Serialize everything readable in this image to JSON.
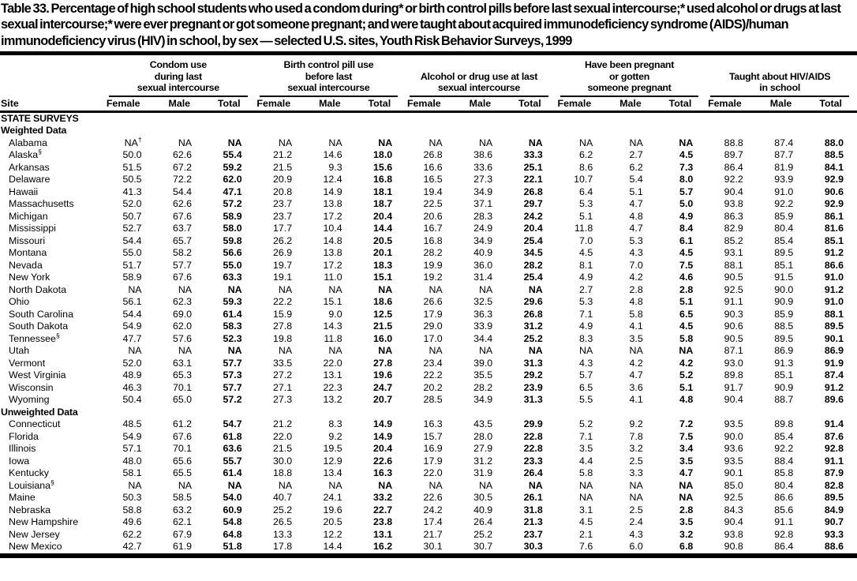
{
  "title": "Table 33. Percentage of high school students who used a condom during* or birth control pills before last sexual intercourse;* used alcohol or drugs at last sexual intercourse;* were ever pregnant or got someone pregnant; and were taught about acquired immunodeficiency syndrome (AIDS)/human immunodeficiency virus (HIV) in school, by sex — selected U.S. sites, Youth Risk Behavior Surveys, 1999",
  "table": {
    "site_header": "Site",
    "column_groups": [
      {
        "label_lines": [
          "Condom use",
          "during last",
          "sexual intercourse"
        ]
      },
      {
        "label_lines": [
          "Birth control pill use",
          "before last",
          "sexual intercourse"
        ]
      },
      {
        "label_lines": [
          "Alcohol or drug use at last",
          "sexual intercourse"
        ]
      },
      {
        "label_lines": [
          "Have been pregnant",
          "or gotten",
          "someone pregnant"
        ]
      },
      {
        "label_lines": [
          "Taught about HIV/AIDS",
          "in school"
        ]
      }
    ],
    "sub_headers": [
      "Female",
      "Male",
      "Total"
    ],
    "sections": [
      {
        "label": "STATE SURVEYS",
        "rows": []
      },
      {
        "label": "Weighted Data",
        "rows": [
          {
            "site": "Alabama",
            "sup": "",
            "values": [
              "NA†",
              "NA",
              "NA",
              "NA",
              "NA",
              "NA",
              "NA",
              "NA",
              "NA",
              "NA",
              "NA",
              "NA",
              "88.8",
              "87.4",
              "88.0"
            ]
          },
          {
            "site": "Alaska",
            "sup": "§",
            "values": [
              "50.0",
              "62.6",
              "55.4",
              "21.2",
              "14.6",
              "18.0",
              "26.8",
              "38.6",
              "33.3",
              "6.2",
              "2.7",
              "4.5",
              "89.7",
              "87.7",
              "88.5"
            ]
          },
          {
            "site": "Arkansas",
            "sup": "",
            "values": [
              "51.5",
              "67.2",
              "59.2",
              "21.5",
              "9.3",
              "15.6",
              "16.6",
              "33.6",
              "25.1",
              "8.6",
              "6.2",
              "7.3",
              "86.4",
              "81.9",
              "84.1"
            ]
          },
          {
            "site": "Delaware",
            "sup": "",
            "values": [
              "50.5",
              "72.2",
              "62.0",
              "20.9",
              "12.4",
              "16.8",
              "16.5",
              "27.3",
              "22.1",
              "10.7",
              "5.4",
              "8.0",
              "92.2",
              "93.9",
              "92.9"
            ]
          },
          {
            "site": "Hawaii",
            "sup": "",
            "values": [
              "41.3",
              "54.4",
              "47.1",
              "20.8",
              "14.9",
              "18.1",
              "19.4",
              "34.9",
              "26.8",
              "6.4",
              "5.1",
              "5.7",
              "90.4",
              "91.0",
              "90.6"
            ]
          },
          {
            "site": "Massachusetts",
            "sup": "",
            "values": [
              "52.0",
              "62.6",
              "57.2",
              "23.7",
              "13.8",
              "18.7",
              "22.5",
              "37.1",
              "29.7",
              "5.3",
              "4.7",
              "5.0",
              "93.8",
              "92.2",
              "92.9"
            ]
          },
          {
            "site": "Michigan",
            "sup": "",
            "values": [
              "50.7",
              "67.6",
              "58.9",
              "23.7",
              "17.2",
              "20.4",
              "20.6",
              "28.3",
              "24.2",
              "5.1",
              "4.8",
              "4.9",
              "86.3",
              "85.9",
              "86.1"
            ]
          },
          {
            "site": "Mississippi",
            "sup": "",
            "values": [
              "52.7",
              "63.7",
              "58.0",
              "17.7",
              "10.4",
              "14.4",
              "16.7",
              "24.9",
              "20.4",
              "11.8",
              "4.7",
              "8.4",
              "82.9",
              "80.4",
              "81.6"
            ]
          },
          {
            "site": "Missouri",
            "sup": "",
            "values": [
              "54.4",
              "65.7",
              "59.8",
              "26.2",
              "14.8",
              "20.5",
              "16.8",
              "34.9",
              "25.4",
              "7.0",
              "5.3",
              "6.1",
              "85.2",
              "85.4",
              "85.1"
            ]
          },
          {
            "site": "Montana",
            "sup": "",
            "values": [
              "55.0",
              "58.2",
              "56.6",
              "26.9",
              "13.8",
              "20.1",
              "28.2",
              "40.9",
              "34.5",
              "4.5",
              "4.3",
              "4.5",
              "93.1",
              "89.5",
              "91.2"
            ]
          },
          {
            "site": "Nevada",
            "sup": "",
            "values": [
              "51.7",
              "57.7",
              "55.0",
              "19.7",
              "17.2",
              "18.3",
              "19.9",
              "36.0",
              "28.2",
              "8.1",
              "7.0",
              "7.5",
              "88.1",
              "85.1",
              "86.6"
            ]
          },
          {
            "site": "New York",
            "sup": "",
            "values": [
              "58.9",
              "67.6",
              "63.3",
              "19.1",
              "11.0",
              "15.1",
              "19.2",
              "31.4",
              "25.4",
              "4.9",
              "4.2",
              "4.6",
              "90.5",
              "91.5",
              "91.0"
            ]
          },
          {
            "site": "North Dakota",
            "sup": "",
            "values": [
              "NA",
              "NA",
              "NA",
              "NA",
              "NA",
              "NA",
              "NA",
              "NA",
              "NA",
              "2.7",
              "2.8",
              "2.8",
              "92.5",
              "90.0",
              "91.2"
            ]
          },
          {
            "site": "Ohio",
            "sup": "",
            "values": [
              "56.1",
              "62.3",
              "59.3",
              "22.2",
              "15.1",
              "18.6",
              "26.6",
              "32.5",
              "29.6",
              "5.3",
              "4.8",
              "5.1",
              "91.1",
              "90.9",
              "91.0"
            ]
          },
          {
            "site": "South Carolina",
            "sup": "",
            "values": [
              "54.4",
              "69.0",
              "61.4",
              "15.9",
              "9.0",
              "12.5",
              "17.9",
              "36.3",
              "26.8",
              "7.1",
              "5.8",
              "6.5",
              "90.3",
              "85.9",
              "88.1"
            ]
          },
          {
            "site": "South Dakota",
            "sup": "",
            "values": [
              "54.9",
              "62.0",
              "58.3",
              "27.8",
              "14.3",
              "21.5",
              "29.0",
              "33.9",
              "31.2",
              "4.9",
              "4.1",
              "4.5",
              "90.6",
              "88.5",
              "89.5"
            ]
          },
          {
            "site": "Tennessee",
            "sup": "§",
            "values": [
              "47.7",
              "57.6",
              "52.3",
              "19.8",
              "11.8",
              "16.0",
              "17.0",
              "34.4",
              "25.2",
              "8.3",
              "3.5",
              "5.8",
              "90.5",
              "89.5",
              "90.1"
            ]
          },
          {
            "site": "Utah",
            "sup": "",
            "values": [
              "NA",
              "NA",
              "NA",
              "NA",
              "NA",
              "NA",
              "NA",
              "NA",
              "NA",
              "NA",
              "NA",
              "NA",
              "87.1",
              "86.9",
              "86.9"
            ]
          },
          {
            "site": "Vermont",
            "sup": "",
            "values": [
              "52.0",
              "63.1",
              "57.7",
              "33.5",
              "22.0",
              "27.8",
              "23.4",
              "39.0",
              "31.3",
              "4.3",
              "4.2",
              "4.2",
              "93.0",
              "91.3",
              "91.9"
            ]
          },
          {
            "site": "West Virginia",
            "sup": "",
            "values": [
              "48.9",
              "65.3",
              "57.3",
              "27.2",
              "13.1",
              "19.6",
              "22.2",
              "35.5",
              "29.2",
              "5.7",
              "4.7",
              "5.2",
              "89.8",
              "85.1",
              "87.4"
            ]
          },
          {
            "site": "Wisconsin",
            "sup": "",
            "values": [
              "46.3",
              "70.1",
              "57.7",
              "27.1",
              "22.3",
              "24.7",
              "20.2",
              "28.2",
              "23.9",
              "6.5",
              "3.6",
              "5.1",
              "91.7",
              "90.9",
              "91.2"
            ]
          },
          {
            "site": "Wyoming",
            "sup": "",
            "values": [
              "50.4",
              "65.0",
              "57.2",
              "27.3",
              "13.2",
              "20.7",
              "28.5",
              "34.9",
              "31.3",
              "5.5",
              "4.1",
              "4.8",
              "90.4",
              "88.7",
              "89.6"
            ]
          }
        ]
      },
      {
        "label": "Unweighted Data",
        "rows": [
          {
            "site": "Connecticut",
            "sup": "",
            "values": [
              "48.5",
              "61.2",
              "54.7",
              "21.2",
              "8.3",
              "14.9",
              "16.3",
              "43.5",
              "29.9",
              "5.2",
              "9.2",
              "7.2",
              "93.5",
              "89.8",
              "91.4"
            ]
          },
          {
            "site": "Florida",
            "sup": "",
            "values": [
              "54.9",
              "67.6",
              "61.8",
              "22.0",
              "9.2",
              "14.9",
              "15.7",
              "28.0",
              "22.8",
              "7.1",
              "7.8",
              "7.5",
              "90.0",
              "85.4",
              "87.6"
            ]
          },
          {
            "site": "Illinois",
            "sup": "",
            "values": [
              "57.1",
              "70.1",
              "63.6",
              "21.5",
              "19.5",
              "20.4",
              "16.9",
              "27.9",
              "22.8",
              "3.5",
              "3.2",
              "3.4",
              "93.6",
              "92.2",
              "92.8"
            ]
          },
          {
            "site": "Iowa",
            "sup": "",
            "values": [
              "48.0",
              "65.6",
              "55.7",
              "30.0",
              "12.9",
              "22.6",
              "17.9",
              "31.2",
              "23.3",
              "4.4",
              "2.5",
              "3.5",
              "93.5",
              "88.4",
              "91.1"
            ]
          },
          {
            "site": "Kentucky",
            "sup": "",
            "values": [
              "58.1",
              "65.5",
              "61.4",
              "18.8",
              "13.4",
              "16.3",
              "22.0",
              "31.9",
              "26.4",
              "5.8",
              "3.3",
              "4.7",
              "90.1",
              "85.8",
              "87.9"
            ]
          },
          {
            "site": "Louisiana",
            "sup": "§",
            "values": [
              "NA",
              "NA",
              "NA",
              "NA",
              "NA",
              "NA",
              "NA",
              "NA",
              "NA",
              "NA",
              "NA",
              "NA",
              "85.0",
              "80.4",
              "82.8"
            ]
          },
          {
            "site": "Maine",
            "sup": "",
            "values": [
              "50.3",
              "58.5",
              "54.0",
              "40.7",
              "24.1",
              "33.2",
              "22.6",
              "30.5",
              "26.1",
              "NA",
              "NA",
              "NA",
              "92.5",
              "86.6",
              "89.5"
            ]
          },
          {
            "site": "Nebraska",
            "sup": "",
            "values": [
              "58.8",
              "63.2",
              "60.9",
              "25.2",
              "19.6",
              "22.7",
              "24.2",
              "40.9",
              "31.8",
              "3.1",
              "2.5",
              "2.8",
              "84.3",
              "85.6",
              "84.9"
            ]
          },
          {
            "site": "New Hampshire",
            "sup": "",
            "values": [
              "49.6",
              "62.1",
              "54.8",
              "26.5",
              "20.5",
              "23.8",
              "17.4",
              "26.4",
              "21.3",
              "4.5",
              "2.4",
              "3.5",
              "90.4",
              "91.1",
              "90.7"
            ]
          },
          {
            "site": "New Jersey",
            "sup": "",
            "values": [
              "62.2",
              "67.9",
              "64.8",
              "13.3",
              "12.2",
              "13.1",
              "21.7",
              "25.2",
              "23.7",
              "2.1",
              "4.3",
              "3.2",
              "93.8",
              "92.8",
              "93.3"
            ]
          },
          {
            "site": "New Mexico",
            "sup": "",
            "values": [
              "42.7",
              "61.9",
              "51.8",
              "17.8",
              "14.4",
              "16.2",
              "30.1",
              "30.7",
              "30.3",
              "7.6",
              "6.0",
              "6.8",
              "90.8",
              "86.4",
              "88.6"
            ]
          }
        ]
      }
    ]
  }
}
